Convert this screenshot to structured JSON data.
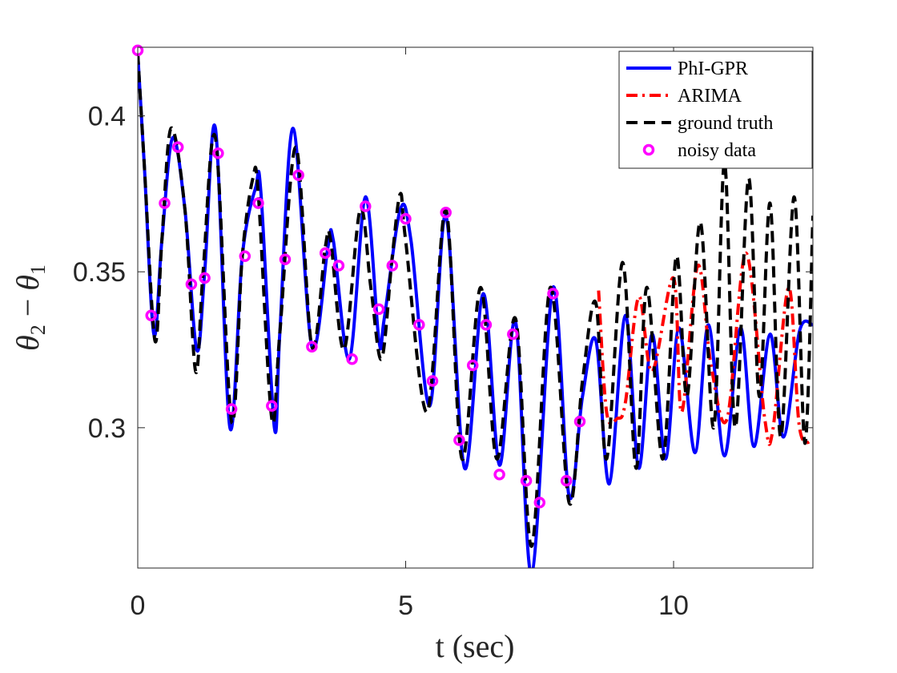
{
  "chart_data": {
    "type": "line",
    "title": "",
    "xlabel": "t (sec)",
    "ylabel": "θ2 − θ1",
    "ylabel_main": "θ",
    "ylabel_sub_a": "2",
    "ylabel_minus": " − ",
    "ylabel_sub_b": "1",
    "xlim": [
      0,
      12.6
    ],
    "ylim": [
      0.255,
      0.422
    ],
    "xticks": [
      0,
      5,
      10
    ],
    "xtick_labels": [
      "0",
      "5",
      "10"
    ],
    "yticks": [
      0.3,
      0.35,
      0.4
    ],
    "ytick_labels": [
      "0.3",
      "0.35",
      "0.4"
    ],
    "legend_position": "top-right",
    "colors": {
      "phi_gpr": "#0000ff",
      "arima": "#ff0000",
      "ground_truth": "#000000",
      "noisy": "#ff00ff"
    },
    "series": [
      {
        "name": "PhI-GPR",
        "style": "solid",
        "x": [
          0,
          0.12,
          0.3,
          0.45,
          0.65,
          0.88,
          1.1,
          1.25,
          1.45,
          1.72,
          1.95,
          2.2,
          2.3,
          2.55,
          2.65,
          2.9,
          3.25,
          3.55,
          3.65,
          3.95,
          4.25,
          4.5,
          4.6,
          4.9,
          5.1,
          5.45,
          5.75,
          6.1,
          6.45,
          6.75,
          7.05,
          7.35,
          7.75,
          8.05,
          8.3,
          8.55,
          8.8,
          9.1,
          9.35,
          9.6,
          9.85,
          10.1,
          10.4,
          10.65,
          10.95,
          11.25,
          11.5,
          11.8,
          12.05,
          12.35,
          12.6
        ],
        "y": [
          0.42,
          0.385,
          0.33,
          0.36,
          0.393,
          0.37,
          0.325,
          0.35,
          0.396,
          0.3,
          0.355,
          0.377,
          0.375,
          0.3,
          0.33,
          0.396,
          0.326,
          0.358,
          0.36,
          0.322,
          0.374,
          0.328,
          0.335,
          0.37,
          0.36,
          0.307,
          0.368,
          0.287,
          0.343,
          0.288,
          0.334,
          0.253,
          0.345,
          0.278,
          0.31,
          0.328,
          0.282,
          0.336,
          0.287,
          0.33,
          0.29,
          0.332,
          0.292,
          0.333,
          0.291,
          0.332,
          0.294,
          0.33,
          0.297,
          0.331,
          0.333
        ]
      },
      {
        "name": "ARIMA",
        "style": "dashdot",
        "x": [
          8.6,
          8.75,
          8.95,
          9.1,
          9.35,
          9.6,
          10.0,
          10.15,
          10.45,
          10.7,
          11.0,
          11.35,
          11.7,
          11.85,
          12.15,
          12.35,
          12.6
        ],
        "y": [
          0.344,
          0.305,
          0.303,
          0.308,
          0.342,
          0.318,
          0.348,
          0.305,
          0.352,
          0.32,
          0.303,
          0.356,
          0.303,
          0.299,
          0.345,
          0.3,
          0.296
        ]
      },
      {
        "name": "ground truth",
        "style": "dashed",
        "x": [
          0,
          0.12,
          0.32,
          0.45,
          0.62,
          0.88,
          1.08,
          1.22,
          1.45,
          1.75,
          1.95,
          2.15,
          2.25,
          2.5,
          2.65,
          2.95,
          3.25,
          3.5,
          3.6,
          3.85,
          4.15,
          4.35,
          4.55,
          4.75,
          4.9,
          5.0,
          5.4,
          5.75,
          6.05,
          6.4,
          6.7,
          7.05,
          7.35,
          7.7,
          8.05,
          8.3,
          8.55,
          8.75,
          9.05,
          9.3,
          9.5,
          9.8,
          10.05,
          10.25,
          10.5,
          10.75,
          10.95,
          11.15,
          11.4,
          11.6,
          11.8,
          12.0,
          12.25,
          12.45,
          12.6
        ],
        "y": [
          0.42,
          0.385,
          0.328,
          0.36,
          0.396,
          0.37,
          0.318,
          0.35,
          0.393,
          0.302,
          0.355,
          0.38,
          0.375,
          0.303,
          0.33,
          0.39,
          0.326,
          0.358,
          0.36,
          0.325,
          0.37,
          0.345,
          0.322,
          0.355,
          0.375,
          0.36,
          0.305,
          0.37,
          0.29,
          0.345,
          0.29,
          0.335,
          0.262,
          0.345,
          0.276,
          0.315,
          0.34,
          0.29,
          0.353,
          0.287,
          0.345,
          0.29,
          0.355,
          0.31,
          0.366,
          0.3,
          0.385,
          0.3,
          0.38,
          0.31,
          0.372,
          0.297,
          0.374,
          0.295,
          0.368
        ]
      }
    ],
    "noisy_data": {
      "name": "noisy data",
      "x": [
        0.0,
        0.25,
        0.5,
        0.75,
        1.0,
        1.25,
        1.5,
        1.75,
        2.0,
        2.25,
        2.5,
        2.75,
        3.0,
        3.25,
        3.5,
        3.75,
        4.0,
        4.25,
        4.5,
        4.75,
        5.0,
        5.25,
        5.5,
        5.75,
        6.0,
        6.25,
        6.5,
        6.75,
        7.0,
        7.25,
        7.5,
        7.75,
        8.0,
        8.25
      ],
      "y": [
        0.421,
        0.336,
        0.372,
        0.39,
        0.346,
        0.348,
        0.388,
        0.306,
        0.355,
        0.372,
        0.307,
        0.354,
        0.381,
        0.326,
        0.356,
        0.352,
        0.322,
        0.371,
        0.338,
        0.352,
        0.367,
        0.333,
        0.315,
        0.369,
        0.296,
        0.32,
        0.333,
        0.285,
        0.33,
        0.283,
        0.276,
        0.343,
        0.283,
        0.302
      ]
    },
    "legend": [
      "PhI-GPR",
      "ARIMA",
      "ground truth",
      "noisy data"
    ]
  }
}
